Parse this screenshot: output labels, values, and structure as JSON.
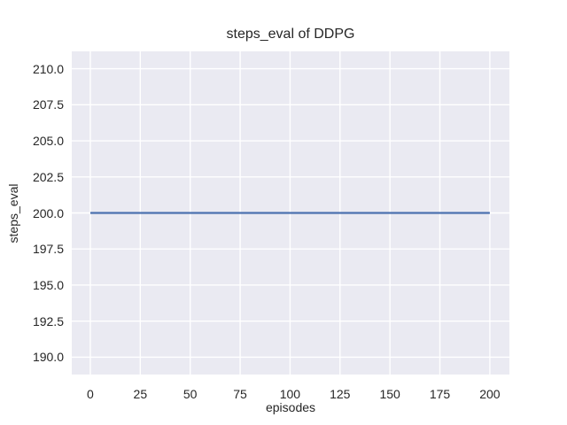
{
  "figure": {
    "background_color": "#ffffff",
    "axes_background_color": "#eaeaf2",
    "grid_color": "#ffffff",
    "text_color": "#262626",
    "line_color": "#4c72b0"
  },
  "chart_data": {
    "type": "line",
    "title": "steps_eval of DDPG",
    "xlabel": "episodes",
    "ylabel": "steps_eval",
    "xlim": [
      -9.3,
      209.8
    ],
    "ylim": [
      188.8,
      211.2
    ],
    "x_ticks": [
      0,
      25,
      50,
      75,
      100,
      125,
      150,
      175,
      200
    ],
    "x_tick_labels": [
      "0",
      "25",
      "50",
      "75",
      "100",
      "125",
      "150",
      "175",
      "200"
    ],
    "y_ticks": [
      190.0,
      192.5,
      195.0,
      197.5,
      200.0,
      202.5,
      205.0,
      207.5,
      210.0
    ],
    "y_tick_labels": [
      "190.0",
      "192.5",
      "195.0",
      "197.5",
      "200.0",
      "202.5",
      "205.0",
      "207.5",
      "210.0"
    ],
    "grid": true,
    "legend_position": "none",
    "series": [
      {
        "name": "steps_eval",
        "color": "#4c72b0",
        "x": [
          0,
          200
        ],
        "y": [
          200,
          200
        ]
      }
    ]
  }
}
